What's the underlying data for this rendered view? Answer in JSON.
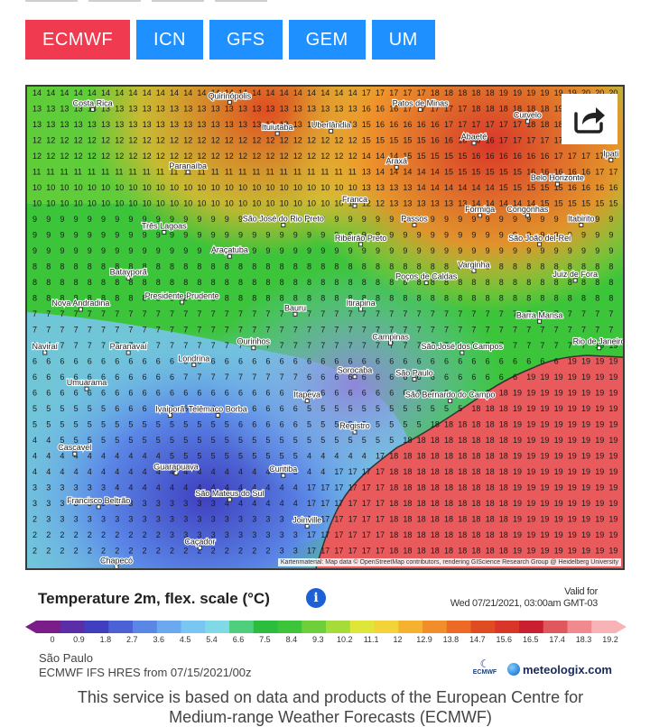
{
  "models": {
    "buttons": [
      {
        "label": "ECMWF",
        "active": true
      },
      {
        "label": "ICN",
        "active": false
      },
      {
        "label": "GFS",
        "active": false
      },
      {
        "label": "GEM",
        "active": false
      },
      {
        "label": "UM",
        "active": false
      }
    ]
  },
  "map": {
    "attribution": "Kartenmaterial: Map data © OpenStreetMap contributors, rendering GIScience Research Group @ Heidelberg University",
    "share_icon": "share-icon",
    "cities": [
      {
        "name": "Costa Rica",
        "fx": 0.11,
        "fy": 0.04
      },
      {
        "name": "Quirinópolis",
        "fx": 0.34,
        "fy": 0.025
      },
      {
        "name": "Patos de Minas",
        "fx": 0.66,
        "fy": 0.04
      },
      {
        "name": "Uberlândia",
        "fx": 0.51,
        "fy": 0.085
      },
      {
        "name": "Ituiutaba",
        "fx": 0.42,
        "fy": 0.09
      },
      {
        "name": "Curvelo",
        "fx": 0.84,
        "fy": 0.065
      },
      {
        "name": "Abaeté",
        "fx": 0.75,
        "fy": 0.11
      },
      {
        "name": "Araxá",
        "fx": 0.62,
        "fy": 0.16
      },
      {
        "name": "Ipati",
        "fx": 0.98,
        "fy": 0.145
      },
      {
        "name": "Paranaíba",
        "fx": 0.27,
        "fy": 0.17
      },
      {
        "name": "Belo Horizonte",
        "fx": 0.89,
        "fy": 0.195
      },
      {
        "name": "Franca",
        "fx": 0.55,
        "fy": 0.24
      },
      {
        "name": "Formiga",
        "fx": 0.76,
        "fy": 0.26
      },
      {
        "name": "Congonhas",
        "fx": 0.84,
        "fy": 0.26
      },
      {
        "name": "Itabirito",
        "fx": 0.93,
        "fy": 0.28
      },
      {
        "name": "São José do Rio Preto",
        "fx": 0.43,
        "fy": 0.28
      },
      {
        "name": "Três Lagoas",
        "fx": 0.23,
        "fy": 0.295
      },
      {
        "name": "Passos",
        "fx": 0.65,
        "fy": 0.28
      },
      {
        "name": "Ribeirão Preto",
        "fx": 0.56,
        "fy": 0.32
      },
      {
        "name": "São João del-Rei",
        "fx": 0.86,
        "fy": 0.32
      },
      {
        "name": "Araçatuba",
        "fx": 0.34,
        "fy": 0.345
      },
      {
        "name": "Varginha",
        "fx": 0.75,
        "fy": 0.375
      },
      {
        "name": "Batayporã",
        "fx": 0.17,
        "fy": 0.39
      },
      {
        "name": "Poços de Caldas",
        "fx": 0.67,
        "fy": 0.4
      },
      {
        "name": "Juiz de Fora",
        "fx": 0.92,
        "fy": 0.395
      },
      {
        "name": "Presidente Prudente",
        "fx": 0.26,
        "fy": 0.44
      },
      {
        "name": "Nova Andradina",
        "fx": 0.09,
        "fy": 0.455
      },
      {
        "name": "Bauru",
        "fx": 0.45,
        "fy": 0.465
      },
      {
        "name": "Itirapina",
        "fx": 0.56,
        "fy": 0.455
      },
      {
        "name": "Barra Mansa",
        "fx": 0.86,
        "fy": 0.48
      },
      {
        "name": "Campinas",
        "fx": 0.61,
        "fy": 0.525
      },
      {
        "name": "São José dos Campos",
        "fx": 0.73,
        "fy": 0.545
      },
      {
        "name": "Rio de Janeiro",
        "fx": 0.96,
        "fy": 0.535
      },
      {
        "name": "Naviraí",
        "fx": 0.03,
        "fy": 0.545
      },
      {
        "name": "Paranavaí",
        "fx": 0.17,
        "fy": 0.545
      },
      {
        "name": "Ourinhos",
        "fx": 0.38,
        "fy": 0.535
      },
      {
        "name": "Londrina",
        "fx": 0.28,
        "fy": 0.57
      },
      {
        "name": "Sorocaba",
        "fx": 0.55,
        "fy": 0.595
      },
      {
        "name": "São Paulo",
        "fx": 0.65,
        "fy": 0.6
      },
      {
        "name": "Umuarama",
        "fx": 0.1,
        "fy": 0.62
      },
      {
        "name": "Itapeva",
        "fx": 0.47,
        "fy": 0.645
      },
      {
        "name": "São Bernardo do Campo",
        "fx": 0.71,
        "fy": 0.645
      },
      {
        "name": "Ivaiporã",
        "fx": 0.24,
        "fy": 0.675
      },
      {
        "name": "Telêmaco Borba",
        "fx": 0.32,
        "fy": 0.675
      },
      {
        "name": "Registro",
        "fx": 0.55,
        "fy": 0.71
      },
      {
        "name": "Cascavel",
        "fx": 0.08,
        "fy": 0.755
      },
      {
        "name": "Guarapuava",
        "fx": 0.25,
        "fy": 0.795
      },
      {
        "name": "Curitiba",
        "fx": 0.43,
        "fy": 0.8
      },
      {
        "name": "Francisco Beltrão",
        "fx": 0.12,
        "fy": 0.865
      },
      {
        "name": "São Mateus do Sul",
        "fx": 0.34,
        "fy": 0.85
      },
      {
        "name": "Joinville",
        "fx": 0.47,
        "fy": 0.905
      },
      {
        "name": "Caçador",
        "fx": 0.29,
        "fy": 0.95
      },
      {
        "name": "Chapecó",
        "fx": 0.15,
        "fy": 0.99
      }
    ]
  },
  "legend": {
    "title": "Temperature 2m, flex. scale (°C)",
    "info_icon": "info-icon",
    "valid_for_label": "Valid for",
    "valid_datetime": "Wed 07/21/2021, 03:00am GMT-03",
    "scale_labels": [
      "0",
      "0.9",
      "1.8",
      "2.7",
      "3.6",
      "4.5",
      "5.4",
      "6.6",
      "7.5",
      "8.4",
      "9.3",
      "10.2",
      "11.1",
      "12",
      "12.9",
      "13.8",
      "14.7",
      "15.6",
      "16.5",
      "17.4",
      "18.3",
      "19.2"
    ],
    "scale_colors": [
      "#7a1d88",
      "#5b2da6",
      "#3f3fbf",
      "#4a62d6",
      "#5a86e6",
      "#6aa8f0",
      "#79c6f2",
      "#7fd9e6",
      "#4fcf7e",
      "#2bbd3e",
      "#3cc43a",
      "#6dd03a",
      "#a6dc3a",
      "#dfe63a",
      "#f4d23a",
      "#f5b22f",
      "#f28e2a",
      "#ec6a26",
      "#e04c22",
      "#d9362a",
      "#c92030",
      "#e0585e",
      "#f08a8e",
      "#f7b3b6"
    ]
  },
  "meta": {
    "location": "São Paulo",
    "model_run": "ECMWF IFS HRES from 07/15/2021/00z"
  },
  "logos": {
    "ecmwf": "ECMWF",
    "meteologix": "meteologix.com"
  },
  "disclaimer": {
    "line1": "This service is based on data and products of the European Centre for",
    "line2": "Medium-range Weather Forecasts (ECMWF)"
  }
}
